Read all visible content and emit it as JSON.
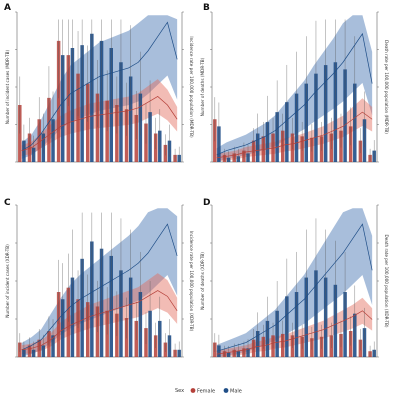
{
  "legend": {
    "title": "Sex",
    "items": [
      {
        "label": "Female",
        "color": "#b5413a"
      },
      {
        "label": "Male",
        "color": "#1f4e87"
      }
    ]
  },
  "colors": {
    "female": "#b5413a",
    "male": "#1f4e87",
    "male_band": "#3f6fb0",
    "female_band": "#e36a5c",
    "female_fill": "#e79a8f",
    "male_fill": "#2f5f9e",
    "errorbar": "#555555"
  },
  "chart_data": [
    {
      "panel": "A",
      "type": "bar",
      "ylabel": "Number of incident cases (MDR-TB)",
      "y2label": "Incidence rate per 100,000 population (MDR-TB)",
      "female": [
        0.4,
        0.2,
        0.3,
        0.45,
        0.85,
        0.75,
        0.62,
        0.55,
        0.48,
        0.43,
        0.4,
        0.37,
        0.33,
        0.27,
        0.2,
        0.12,
        0.05
      ],
      "male": [
        0.15,
        0.1,
        0.2,
        0.3,
        0.75,
        0.8,
        0.82,
        0.9,
        0.85,
        0.8,
        0.7,
        0.6,
        0.48,
        0.35,
        0.22,
        0.15,
        0.05
      ],
      "male_rate": [
        0.08,
        0.12,
        0.2,
        0.3,
        0.4,
        0.48,
        0.52,
        0.56,
        0.6,
        0.62,
        0.64,
        0.66,
        0.7,
        0.78,
        0.88,
        0.98,
        0.72
      ],
      "female_rate": [
        0.08,
        0.1,
        0.15,
        0.2,
        0.25,
        0.28,
        0.3,
        0.32,
        0.33,
        0.34,
        0.35,
        0.36,
        0.38,
        0.42,
        0.46,
        0.4,
        0.3
      ]
    },
    {
      "panel": "B",
      "type": "bar",
      "ylabel": "Number of deaths (MDR-TB)",
      "y2label": "Death rate per 100,000 population (MDR-TB)",
      "female": [
        0.3,
        0.05,
        0.06,
        0.08,
        0.15,
        0.18,
        0.2,
        0.22,
        0.2,
        0.18,
        0.17,
        0.18,
        0.2,
        0.22,
        0.25,
        0.15,
        0.05
      ],
      "male": [
        0.25,
        0.03,
        0.04,
        0.06,
        0.2,
        0.28,
        0.35,
        0.42,
        0.48,
        0.55,
        0.62,
        0.68,
        0.7,
        0.65,
        0.55,
        0.3,
        0.08
      ],
      "male_rate": [
        0.05,
        0.08,
        0.1,
        0.12,
        0.15,
        0.18,
        0.22,
        0.28,
        0.34,
        0.4,
        0.48,
        0.55,
        0.62,
        0.7,
        0.8,
        0.9,
        0.55
      ],
      "female_rate": [
        0.03,
        0.04,
        0.05,
        0.07,
        0.08,
        0.09,
        0.1,
        0.12,
        0.13,
        0.15,
        0.17,
        0.19,
        0.22,
        0.25,
        0.3,
        0.35,
        0.3
      ]
    },
    {
      "panel": "C",
      "type": "bar",
      "ylabel": "Number of incident cases (XDR-TB)",
      "y2label": "Incidence rate per 100,000 population (XDR-TB)",
      "female": [
        0.1,
        0.08,
        0.12,
        0.18,
        0.45,
        0.48,
        0.4,
        0.38,
        0.35,
        0.32,
        0.3,
        0.27,
        0.25,
        0.2,
        0.15,
        0.1,
        0.05
      ],
      "male": [
        0.05,
        0.05,
        0.08,
        0.15,
        0.4,
        0.55,
        0.68,
        0.8,
        0.75,
        0.7,
        0.6,
        0.55,
        0.45,
        0.32,
        0.25,
        0.15,
        0.05
      ],
      "male_rate": [
        0.05,
        0.08,
        0.12,
        0.2,
        0.28,
        0.35,
        0.4,
        0.44,
        0.48,
        0.52,
        0.56,
        0.6,
        0.65,
        0.72,
        0.82,
        0.92,
        0.7
      ],
      "female_rate": [
        0.05,
        0.06,
        0.08,
        0.12,
        0.18,
        0.22,
        0.25,
        0.28,
        0.3,
        0.32,
        0.34,
        0.36,
        0.38,
        0.42,
        0.46,
        0.42,
        0.32
      ]
    },
    {
      "panel": "D",
      "type": "bar",
      "ylabel": "Number of deaths (XDR-TB)",
      "y2label": "Death rate per 100,000 population (XDR-TB)",
      "female": [
        0.1,
        0.04,
        0.05,
        0.06,
        0.12,
        0.14,
        0.15,
        0.16,
        0.15,
        0.14,
        0.13,
        0.14,
        0.15,
        0.16,
        0.18,
        0.12,
        0.04
      ],
      "male": [
        0.08,
        0.03,
        0.04,
        0.06,
        0.18,
        0.25,
        0.32,
        0.42,
        0.45,
        0.55,
        0.6,
        0.55,
        0.5,
        0.45,
        0.3,
        0.2,
        0.05
      ],
      "male_rate": [
        0.04,
        0.06,
        0.08,
        0.1,
        0.14,
        0.18,
        0.22,
        0.28,
        0.34,
        0.4,
        0.48,
        0.56,
        0.64,
        0.72,
        0.82,
        0.92,
        0.6
      ],
      "female_rate": [
        0.02,
        0.03,
        0.04,
        0.05,
        0.07,
        0.08,
        0.1,
        0.11,
        0.13,
        0.15,
        0.17,
        0.19,
        0.22,
        0.25,
        0.28,
        0.32,
        0.26
      ]
    }
  ]
}
